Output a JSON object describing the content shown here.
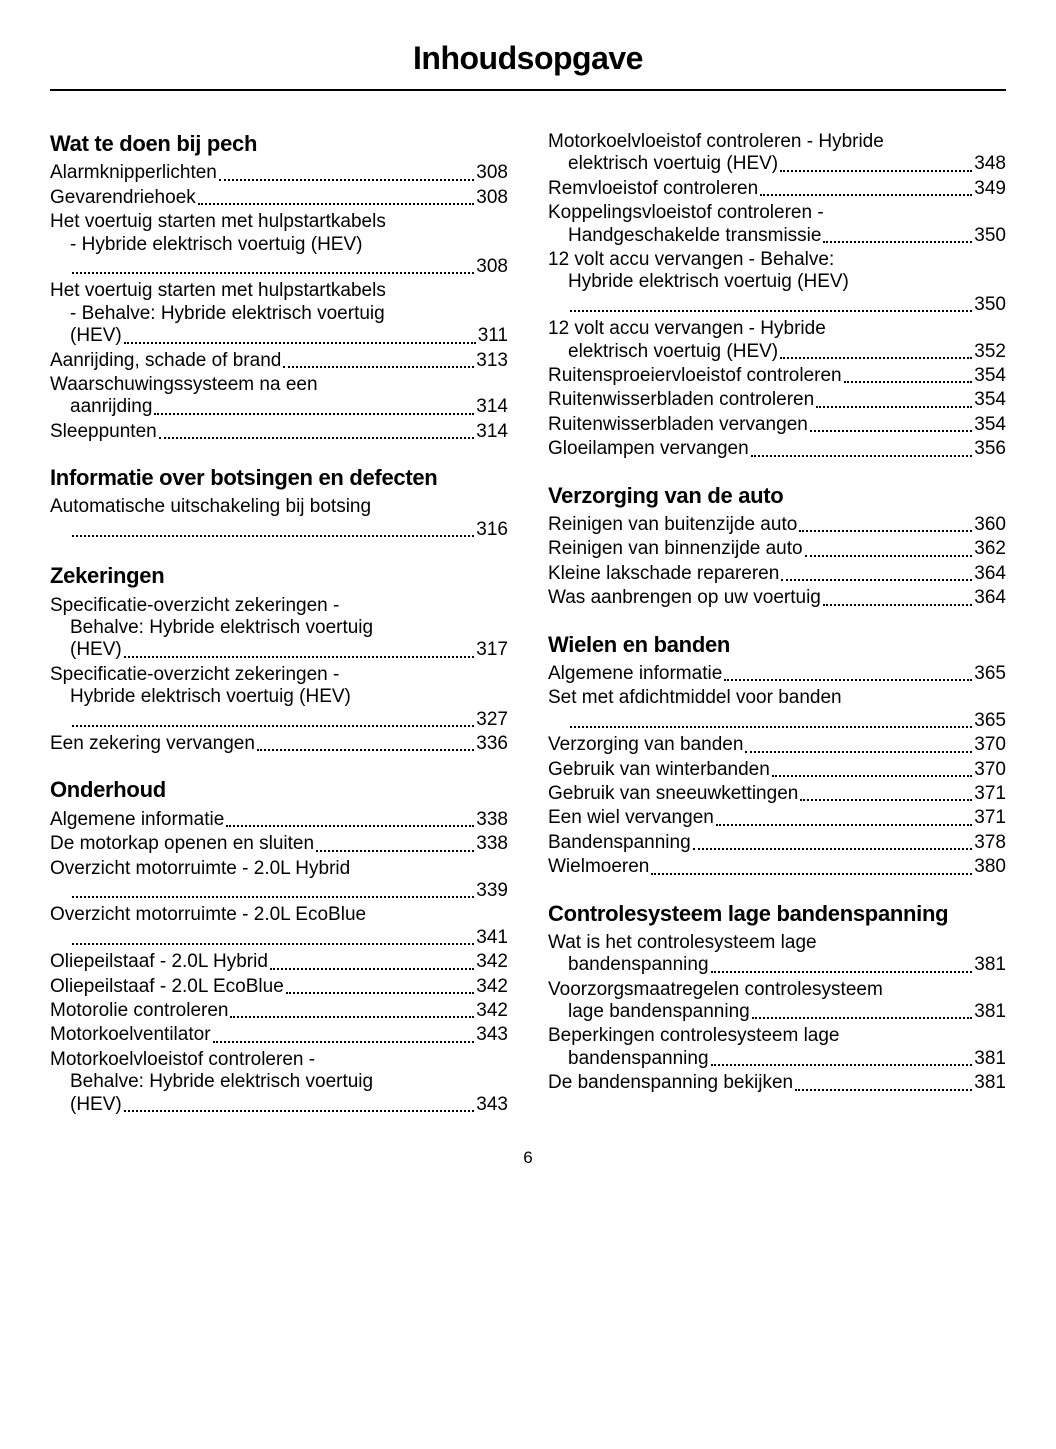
{
  "title": "Inhoudsopgave",
  "page_number": "6",
  "left_column": [
    {
      "type": "heading",
      "text": "Wat te doen bij pech"
    },
    {
      "type": "entry",
      "label": "Alarmknipperlichten",
      "page": "308"
    },
    {
      "type": "entry",
      "label": "Gevarendriehoek",
      "page": "308"
    },
    {
      "type": "entry",
      "label": "Het voertuig starten met hulpstartkabels",
      "label2": "- Hybride elektrisch voertuig (HEV)",
      "label3": "",
      "page": "308"
    },
    {
      "type": "entry",
      "label": "Het voertuig starten met hulpstartkabels",
      "label2": "- Behalve: Hybride elektrisch voertuig",
      "label3": "(HEV)",
      "page": "311"
    },
    {
      "type": "entry",
      "label": "Aanrijding, schade of brand",
      "page": "313"
    },
    {
      "type": "entry",
      "label": "Waarschuwingssysteem na een",
      "label2": "aanrijding",
      "page": "314"
    },
    {
      "type": "entry",
      "label": "Sleeppunten",
      "page": "314"
    },
    {
      "type": "heading",
      "text": "Informatie over botsingen en defecten"
    },
    {
      "type": "entry",
      "label": "Automatische uitschakeling bij botsing",
      "label2": "",
      "page": "316"
    },
    {
      "type": "heading",
      "text": "Zekeringen"
    },
    {
      "type": "entry",
      "label": "Specificatie-overzicht zekeringen -",
      "label2": "Behalve: Hybride elektrisch voertuig",
      "label3": "(HEV)",
      "page": "317"
    },
    {
      "type": "entry",
      "label": "Specificatie-overzicht zekeringen -",
      "label2": "Hybride elektrisch voertuig (HEV)",
      "label3": "",
      "page": "327"
    },
    {
      "type": "entry",
      "label": "Een zekering vervangen",
      "page": "336"
    },
    {
      "type": "heading",
      "text": "Onderhoud"
    },
    {
      "type": "entry",
      "label": "Algemene informatie",
      "page": "338"
    },
    {
      "type": "entry",
      "label": "De motorkap openen en sluiten",
      "page": "338"
    },
    {
      "type": "entry",
      "label": "Overzicht motorruimte - 2.0L Hybrid",
      "label2": "",
      "page": "339"
    },
    {
      "type": "entry",
      "label": "Overzicht motorruimte - 2.0L EcoBlue",
      "label2": "",
      "page": "341"
    },
    {
      "type": "entry",
      "label": "Oliepeilstaaf - 2.0L Hybrid",
      "page": "342"
    },
    {
      "type": "entry",
      "label": "Oliepeilstaaf - 2.0L EcoBlue",
      "page": "342"
    },
    {
      "type": "entry",
      "label": "Motorolie controleren",
      "page": "342"
    },
    {
      "type": "entry",
      "label": "Motorkoelventilator",
      "page": "343"
    },
    {
      "type": "entry",
      "label": "Motorkoelvloeistof controleren -",
      "label2": "Behalve: Hybride elektrisch voertuig",
      "label3": "(HEV)",
      "page": "343"
    }
  ],
  "right_column": [
    {
      "type": "entry",
      "label": "Motorkoelvloeistof controleren - Hybride",
      "label2": "elektrisch voertuig (HEV)",
      "page": "348"
    },
    {
      "type": "entry",
      "label": "Remvloeistof controleren",
      "page": "349"
    },
    {
      "type": "entry",
      "label": "Koppelingsvloeistof controleren -",
      "label2": "Handgeschakelde transmissie",
      "page": "350"
    },
    {
      "type": "entry",
      "label": "12 volt accu vervangen - Behalve:",
      "label2": "Hybride elektrisch voertuig (HEV)",
      "label3": "",
      "page": "350"
    },
    {
      "type": "entry",
      "label": "12 volt accu vervangen - Hybride",
      "label2": "elektrisch voertuig (HEV)",
      "page": "352"
    },
    {
      "type": "entry",
      "label": "Ruitensproeiervloeistof controleren",
      "page": "354"
    },
    {
      "type": "entry",
      "label": "Ruitenwisserbladen controleren",
      "page": "354"
    },
    {
      "type": "entry",
      "label": "Ruitenwisserbladen vervangen",
      "page": "354"
    },
    {
      "type": "entry",
      "label": "Gloeilampen vervangen",
      "page": "356"
    },
    {
      "type": "heading",
      "text": "Verzorging van de auto"
    },
    {
      "type": "entry",
      "label": "Reinigen van buitenzijde auto",
      "page": "360"
    },
    {
      "type": "entry",
      "label": "Reinigen van binnenzijde auto",
      "page": "362"
    },
    {
      "type": "entry",
      "label": "Kleine lakschade repareren",
      "page": "364"
    },
    {
      "type": "entry",
      "label": "Was aanbrengen op uw voertuig",
      "page": "364"
    },
    {
      "type": "heading",
      "text": "Wielen en banden"
    },
    {
      "type": "entry",
      "label": "Algemene informatie",
      "page": "365"
    },
    {
      "type": "entry",
      "label": "Set met afdichtmiddel voor banden",
      "label2": "",
      "page": "365"
    },
    {
      "type": "entry",
      "label": "Verzorging van banden",
      "page": "370"
    },
    {
      "type": "entry",
      "label": "Gebruik van winterbanden",
      "page": "370"
    },
    {
      "type": "entry",
      "label": "Gebruik van sneeuwkettingen",
      "page": "371"
    },
    {
      "type": "entry",
      "label": "Een wiel vervangen",
      "page": "371"
    },
    {
      "type": "entry",
      "label": "Bandenspanning",
      "page": "378"
    },
    {
      "type": "entry",
      "label": "Wielmoeren",
      "page": "380"
    },
    {
      "type": "heading",
      "text": "Controlesysteem lage bandenspanning"
    },
    {
      "type": "entry",
      "label": "Wat is het controlesysteem lage",
      "label2": "bandenspanning",
      "page": "381"
    },
    {
      "type": "entry",
      "label": "Voorzorgsmaatregelen controlesysteem",
      "label2": "lage bandenspanning",
      "page": "381"
    },
    {
      "type": "entry",
      "label": "Beperkingen controlesysteem lage",
      "label2": "bandenspanning",
      "page": "381"
    },
    {
      "type": "entry",
      "label": "De bandenspanning bekijken",
      "page": "381"
    }
  ]
}
